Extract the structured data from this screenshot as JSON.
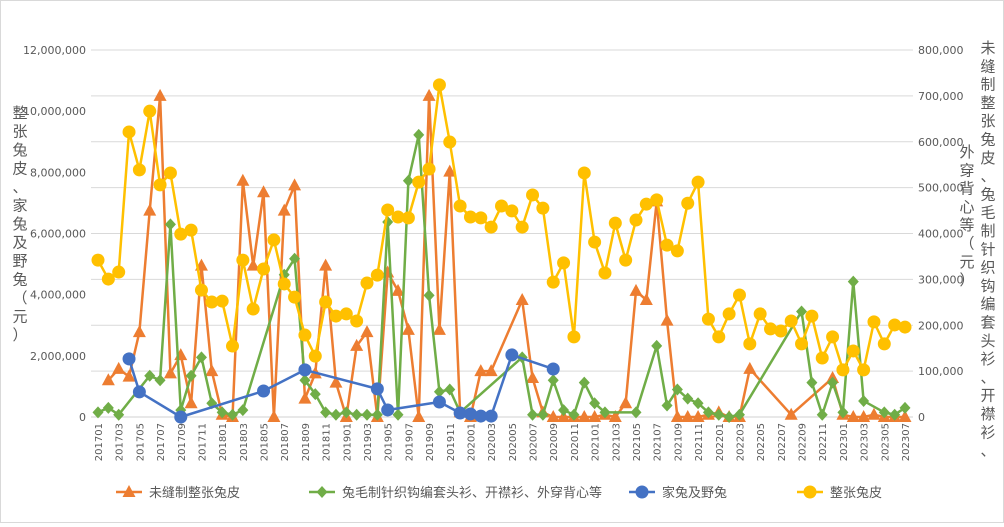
{
  "chart_data": {
    "type": "line",
    "title": "",
    "y_left_label": "整张兔皮、家兔及野兔（元）",
    "y_right_label": "未缝制整张兔皮、兔毛制针织钩编套头衫、开襟衫、外穿背心等（元）",
    "ylim_left": [
      0,
      12000000
    ],
    "ylim_right": [
      0,
      800000
    ],
    "yticks_left": [
      "0",
      "2,000,000",
      "4,000,000",
      "6,000,000",
      "8,000,000",
      "10,000,000",
      "12,000,000"
    ],
    "yticks_right": [
      "0",
      "100,000",
      "200,000",
      "300,000",
      "400,000",
      "500,000",
      "600,000",
      "700,000",
      "800,000"
    ],
    "grid": true,
    "legend_position": "bottom",
    "x": [
      "201701",
      "201702",
      "201703",
      "201704",
      "201705",
      "201706",
      "201707",
      "201708",
      "201709",
      "201710",
      "201711",
      "201712",
      "201801",
      "201802",
      "201803",
      "201804",
      "201805",
      "201806",
      "201807",
      "201808",
      "201809",
      "201810",
      "201811",
      "201812",
      "201901",
      "201902",
      "201903",
      "201904",
      "201905",
      "201906",
      "201907",
      "201908",
      "201909",
      "201910",
      "201911",
      "201912",
      "202001",
      "202002",
      "202003",
      "202004",
      "202005",
      "202006",
      "202007",
      "202008",
      "202009",
      "202010",
      "202011",
      "202012",
      "202101",
      "202102",
      "202103",
      "202104",
      "202105",
      "202106",
      "202107",
      "202108",
      "202109",
      "202110",
      "202111",
      "202112",
      "202201",
      "202202",
      "202203",
      "202204",
      "202205",
      "202206",
      "202207",
      "202208",
      "202209",
      "202210",
      "202211",
      "202212",
      "202301",
      "202302",
      "202303",
      "202304",
      "202305",
      "202306",
      "202307"
    ],
    "x_tick_labels": [
      "201701",
      "201703",
      "201705",
      "201707",
      "201709",
      "201711",
      "201801",
      "201803",
      "201805",
      "201807",
      "201809",
      "201811",
      "201901",
      "201903",
      "201905",
      "201907",
      "201909",
      "201911",
      "202001",
      "202003",
      "202005",
      "202007",
      "202009",
      "202011",
      "202101",
      "202103",
      "202105",
      "202107",
      "202109",
      "202111",
      "202201",
      "202203",
      "202205",
      "202207",
      "202209",
      "202211",
      "202301",
      "202303",
      "202305",
      "202307"
    ],
    "series": [
      {
        "name": "未缝制整张兔皮",
        "axis": "right",
        "color": "#ED7D31",
        "marker": "triangle",
        "values": [
          null,
          80000,
          105000,
          88000,
          185000,
          450000,
          700000,
          95000,
          135000,
          30000,
          330000,
          100000,
          5000,
          0,
          515000,
          330000,
          490000,
          0,
          450000,
          505000,
          40000,
          95000,
          330000,
          75000,
          0,
          155000,
          185000,
          0,
          315000,
          275000,
          190000,
          0,
          700000,
          190000,
          535000,
          10000,
          0,
          100000,
          100000,
          null,
          null,
          255000,
          85000,
          10000,
          0,
          0,
          0,
          0,
          0,
          5000,
          0,
          30000,
          275000,
          255000,
          470000,
          210000,
          0,
          0,
          0,
          5000,
          10000,
          0,
          0,
          105000,
          null,
          null,
          null,
          5000,
          null,
          null,
          null,
          85000,
          5000,
          0,
          0,
          5000,
          0,
          0,
          0
        ]
      },
      {
        "name": "兔毛制针织钩编套头衫、开襟衫、外穿背心等",
        "axis": "right",
        "color": "#70AD47",
        "marker": "diamond",
        "values": [
          10000,
          20000,
          5000,
          null,
          null,
          90000,
          80000,
          420000,
          15000,
          90000,
          130000,
          30000,
          10000,
          5000,
          15000,
          null,
          null,
          null,
          310000,
          345000,
          80000,
          50000,
          10000,
          5000,
          10000,
          5000,
          5000,
          5000,
          425000,
          5000,
          515000,
          615000,
          265000,
          55000,
          60000,
          10000,
          null,
          null,
          null,
          null,
          null,
          130000,
          5000,
          5000,
          80000,
          15000,
          5000,
          75000,
          30000,
          10000,
          null,
          null,
          10000,
          null,
          155000,
          25000,
          60000,
          40000,
          30000,
          10000,
          5000,
          0,
          5000,
          null,
          null,
          null,
          null,
          null,
          230000,
          75000,
          5000,
          75000,
          10000,
          295000,
          35000,
          null,
          10000,
          5000,
          20000
        ]
      },
      {
        "name": "家兔及野兔",
        "axis": "left",
        "color": "#4472C4",
        "marker": "circle",
        "values": [
          null,
          null,
          null,
          1900000,
          820000,
          null,
          null,
          null,
          0,
          null,
          null,
          null,
          null,
          null,
          null,
          null,
          850000,
          null,
          null,
          null,
          1540000,
          null,
          null,
          null,
          null,
          null,
          null,
          920000,
          230000,
          null,
          null,
          null,
          null,
          490000,
          null,
          130000,
          100000,
          30000,
          30000,
          null,
          2030000,
          null,
          null,
          null,
          1570000,
          null,
          null,
          null,
          null,
          null,
          null,
          null,
          null,
          null,
          null,
          null,
          null,
          null,
          null,
          null,
          null,
          null,
          null,
          null,
          null,
          null,
          null,
          null,
          null,
          null,
          null,
          null,
          null,
          null,
          null,
          null,
          null,
          null,
          null
        ]
      },
      {
        "name": "整张兔皮",
        "axis": "left",
        "color": "#FFC000",
        "marker": "circle",
        "values": [
          5130000,
          4510000,
          4740000,
          9320000,
          8080000,
          10000000,
          7590000,
          7980000,
          5980000,
          6110000,
          4150000,
          3760000,
          3790000,
          2320000,
          5130000,
          3530000,
          4840000,
          5790000,
          4350000,
          3920000,
          2680000,
          1990000,
          3760000,
          3300000,
          3370000,
          3140000,
          4380000,
          4640000,
          6770000,
          6540000,
          6510000,
          7680000,
          8110000,
          10860000,
          8990000,
          6900000,
          6540000,
          6510000,
          6210000,
          6900000,
          6740000,
          6210000,
          7260000,
          6830000,
          4410000,
          5040000,
          2620000,
          7980000,
          5720000,
          4710000,
          6340000,
          5130000,
          6440000,
          6960000,
          7100000,
          5620000,
          5430000,
          6990000,
          7680000,
          3200000,
          2620000,
          3370000,
          3990000,
          2390000,
          3370000,
          2880000,
          2810000,
          3140000,
          2390000,
          3300000,
          1930000,
          2620000,
          1540000,
          2160000,
          1540000,
          3110000,
          2390000,
          3010000,
          2940000
        ]
      }
    ]
  },
  "legend": [
    {
      "label": "未缝制整张兔皮",
      "color": "#ED7D31",
      "marker": "triangle"
    },
    {
      "label": "兔毛制针织钩编套头衫、开襟衫、外穿背心等",
      "color": "#70AD47",
      "marker": "diamond"
    },
    {
      "label": "家兔及野兔",
      "color": "#4472C4",
      "marker": "circle"
    },
    {
      "label": "整张兔皮",
      "color": "#FFC000",
      "marker": "circle"
    }
  ]
}
